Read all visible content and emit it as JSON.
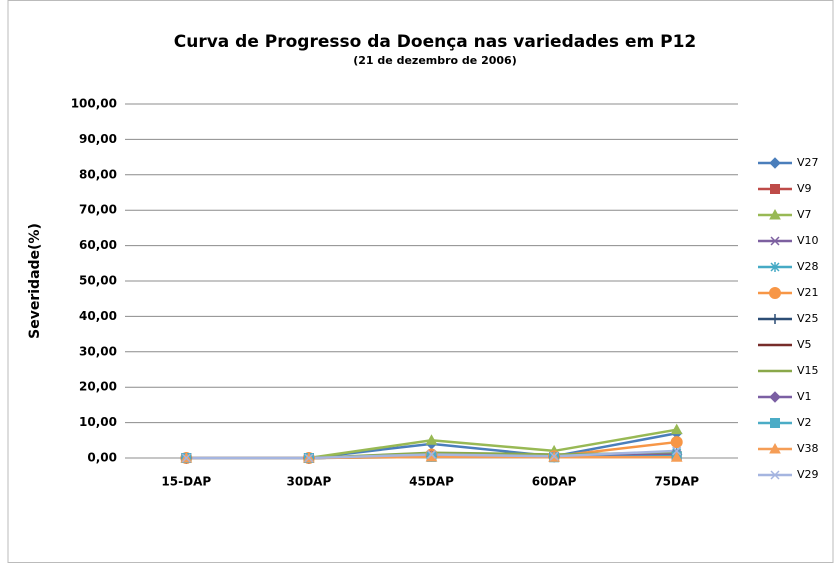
{
  "chart_data": {
    "type": "line",
    "title": "Curva de Progresso da Doença nas variedades em P12",
    "subtitle": "(21 de dezembro de 2006)",
    "y_label": "Severidade(%)",
    "categories": [
      "15-DAP",
      "30DAP",
      "45DAP",
      "60DAP",
      "75DAP"
    ],
    "ylim": [
      0,
      100
    ],
    "yticks": [
      {
        "value": 0,
        "label": "0,00"
      },
      {
        "value": 10,
        "label": "10,00"
      },
      {
        "value": 20,
        "label": "20,00"
      },
      {
        "value": 30,
        "label": "30,00"
      },
      {
        "value": 40,
        "label": "40,00"
      },
      {
        "value": 50,
        "label": "50,00"
      },
      {
        "value": 60,
        "label": "60,00"
      },
      {
        "value": 70,
        "label": "70,00"
      },
      {
        "value": 80,
        "label": "80,00"
      },
      {
        "value": 90,
        "label": "90,00"
      },
      {
        "value": 100,
        "label": "100,00"
      }
    ],
    "grid": true,
    "legend": "right",
    "series": [
      {
        "name": "V27",
        "color": "#4a7ebb",
        "marker": "diamond",
        "values": [
          0,
          0,
          4,
          0.5,
          7
        ]
      },
      {
        "name": "V9",
        "color": "#be4b48",
        "marker": "square",
        "values": [
          0,
          0,
          0.5,
          0.3,
          0.5
        ]
      },
      {
        "name": "V7",
        "color": "#98b954",
        "marker": "triangle",
        "values": [
          0,
          0,
          5,
          2,
          8
        ]
      },
      {
        "name": "V10",
        "color": "#7d60a0",
        "marker": "x",
        "values": [
          0,
          0,
          1,
          0.5,
          1
        ]
      },
      {
        "name": "V28",
        "color": "#46aac5",
        "marker": "asterisk",
        "values": [
          0,
          0,
          0.5,
          0.3,
          1.5
        ]
      },
      {
        "name": "V21",
        "color": "#f79646",
        "marker": "circle",
        "values": [
          0,
          0,
          1,
          0.5,
          4.5
        ]
      },
      {
        "name": "V25",
        "color": "#2c4d75",
        "marker": "plus",
        "values": [
          0,
          0,
          0.5,
          0.3,
          1
        ]
      },
      {
        "name": "V5",
        "color": "#772c2a",
        "marker": "none",
        "values": [
          0,
          0,
          0.5,
          0.5,
          0.5
        ]
      },
      {
        "name": "V15",
        "color": "#8aa84a",
        "marker": "dash",
        "values": [
          0,
          0,
          1.5,
          1,
          1.5
        ]
      },
      {
        "name": "V1",
        "color": "#7b5fa3",
        "marker": "diamond",
        "values": [
          0,
          0,
          0.5,
          0.3,
          1
        ]
      },
      {
        "name": "V2",
        "color": "#4bacc6",
        "marker": "square",
        "values": [
          0,
          0,
          0.3,
          0.2,
          0.5
        ]
      },
      {
        "name": "V38",
        "color": "#f59d56",
        "marker": "triangle",
        "values": [
          0,
          0,
          0.3,
          0.2,
          0.2
        ]
      },
      {
        "name": "V29",
        "color": "#a5b5e0",
        "marker": "x",
        "values": [
          0,
          0,
          1,
          0.5,
          2
        ]
      }
    ]
  }
}
